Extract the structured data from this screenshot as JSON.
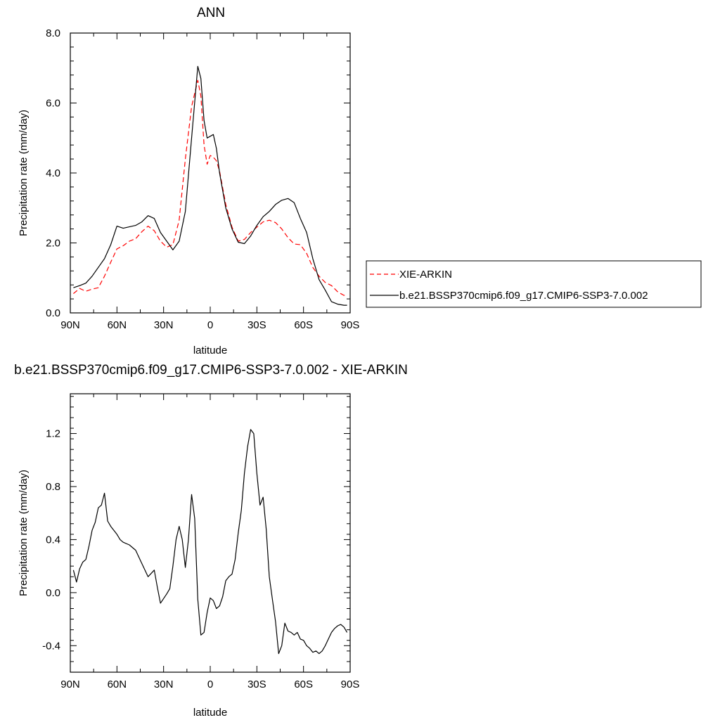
{
  "chart_data": [
    {
      "type": "line",
      "title": "ANN",
      "xlabel": "latitude",
      "ylabel": "Precipitation rate (mm/day)",
      "xlim": [
        90,
        -90
      ],
      "ylim": [
        0,
        8
      ],
      "x_ticks": [
        90,
        60,
        30,
        0,
        -30,
        -60,
        -90
      ],
      "x_tick_labels": [
        "90N",
        "60N",
        "30N",
        "0",
        "30S",
        "60S",
        "90S"
      ],
      "y_ticks": [
        0,
        2,
        4,
        6,
        8
      ],
      "y_tick_labels": [
        "0.0",
        "2.0",
        "4.0",
        "6.0",
        "8.0"
      ],
      "legend_position": "right",
      "series": [
        {
          "name": "XIE-ARKIN",
          "color": "#ff0000",
          "dash": "dashed",
          "x": [
            88,
            84,
            80,
            76,
            72,
            68,
            64,
            60,
            56,
            52,
            48,
            44,
            40,
            36,
            32,
            28,
            24,
            20,
            16,
            12,
            8,
            6,
            4,
            2,
            0,
            -2,
            -4,
            -6,
            -10,
            -14,
            -18,
            -22,
            -26,
            -30,
            -34,
            -38,
            -42,
            -46,
            -50,
            -54,
            -58,
            -62,
            -66,
            -70,
            -74,
            -78,
            -82,
            -86,
            -88
          ],
          "values": [
            0.55,
            0.7,
            0.62,
            0.68,
            0.72,
            1.05,
            1.45,
            1.83,
            1.92,
            2.05,
            2.12,
            2.32,
            2.48,
            2.35,
            2.05,
            1.88,
            1.95,
            2.65,
            4.4,
            5.9,
            6.65,
            6.2,
            4.8,
            4.25,
            4.5,
            4.45,
            4.35,
            4.05,
            3.1,
            2.45,
            2.05,
            2.1,
            2.3,
            2.45,
            2.6,
            2.65,
            2.58,
            2.4,
            2.15,
            1.97,
            1.95,
            1.7,
            1.3,
            1.05,
            0.87,
            0.78,
            0.6,
            0.5,
            0.52
          ]
        },
        {
          "name": "b.e21.BSSP370cmip6.f09_g17.CMIP6-SSP3-7.0.002",
          "color": "#000000",
          "dash": "solid",
          "x": [
            88,
            84,
            80,
            76,
            72,
            68,
            64,
            60,
            56,
            52,
            48,
            44,
            40,
            36,
            32,
            28,
            24,
            20,
            16,
            12,
            8,
            6,
            4,
            2,
            0,
            -2,
            -4,
            -6,
            -10,
            -14,
            -18,
            -22,
            -26,
            -30,
            -34,
            -38,
            -42,
            -46,
            -50,
            -54,
            -58,
            -62,
            -66,
            -70,
            -74,
            -78,
            -82,
            -86,
            -88
          ],
          "values": [
            0.72,
            0.78,
            0.85,
            1.05,
            1.3,
            1.55,
            1.95,
            2.48,
            2.42,
            2.46,
            2.5,
            2.6,
            2.78,
            2.7,
            2.3,
            2.05,
            1.8,
            2.05,
            2.9,
            5.0,
            7.05,
            6.7,
            5.5,
            5.0,
            5.05,
            5.1,
            4.7,
            4.0,
            3.0,
            2.4,
            2.02,
            1.98,
            2.2,
            2.5,
            2.75,
            2.9,
            3.1,
            3.22,
            3.27,
            3.15,
            2.7,
            2.3,
            1.55,
            0.95,
            0.65,
            0.32,
            0.25,
            0.22,
            0.22
          ]
        }
      ]
    },
    {
      "type": "line",
      "title": "b.e21.BSSP370cmip6.f09_g17.CMIP6-SSP3-7.0.002 - XIE-ARKIN",
      "xlabel": "latitude",
      "ylabel": "Precipitation rate (mm/day)",
      "xlim": [
        90,
        -90
      ],
      "ylim": [
        -0.6,
        1.5
      ],
      "x_ticks": [
        90,
        60,
        30,
        0,
        -30,
        -60,
        -90
      ],
      "x_tick_labels": [
        "90N",
        "60N",
        "30N",
        "0",
        "30S",
        "60S",
        "90S"
      ],
      "y_ticks": [
        -0.4,
        0,
        0.4,
        0.8,
        1.2
      ],
      "y_tick_labels": [
        "-0.4",
        "0.0",
        "0.4",
        "0.8",
        "1.2"
      ],
      "series": [
        {
          "name": "",
          "color": "#000000",
          "dash": "solid",
          "x": [
            88,
            86,
            84,
            82,
            80,
            78,
            76,
            74,
            72,
            70,
            68,
            66,
            64,
            62,
            60,
            58,
            56,
            52,
            48,
            44,
            40,
            36,
            34,
            32,
            28,
            26,
            24,
            22,
            20,
            18,
            16,
            14,
            12,
            10,
            8,
            6,
            4,
            2,
            0,
            -2,
            -4,
            -6,
            -8,
            -10,
            -12,
            -14,
            -16,
            -18,
            -20,
            -22,
            -24,
            -26,
            -28,
            -30,
            -32,
            -34,
            -36,
            -38,
            -40,
            -42,
            -44,
            -46,
            -48,
            -50,
            -52,
            -54,
            -56,
            -58,
            -60,
            -62,
            -64,
            -66,
            -68,
            -70,
            -72,
            -74,
            -76,
            -78,
            -80,
            -82,
            -84,
            -86,
            -88
          ],
          "values": [
            0.17,
            0.08,
            0.18,
            0.23,
            0.25,
            0.35,
            0.47,
            0.53,
            0.64,
            0.66,
            0.75,
            0.54,
            0.5,
            0.47,
            0.44,
            0.4,
            0.38,
            0.36,
            0.32,
            0.22,
            0.12,
            0.17,
            0.04,
            -0.08,
            -0.01,
            0.03,
            0.2,
            0.4,
            0.5,
            0.4,
            0.19,
            0.4,
            0.74,
            0.56,
            -0.05,
            -0.32,
            -0.3,
            -0.15,
            -0.04,
            -0.06,
            -0.12,
            -0.1,
            -0.03,
            0.09,
            0.12,
            0.14,
            0.25,
            0.45,
            0.62,
            0.9,
            1.1,
            1.23,
            1.2,
            0.9,
            0.66,
            0.72,
            0.48,
            0.12,
            -0.05,
            -0.22,
            -0.46,
            -0.4,
            -0.23,
            -0.29,
            -0.3,
            -0.32,
            -0.3,
            -0.35,
            -0.36,
            -0.4,
            -0.42,
            -0.45,
            -0.44,
            -0.46,
            -0.44,
            -0.4,
            -0.35,
            -0.3,
            -0.27,
            -0.25,
            -0.24,
            -0.26,
            -0.3
          ]
        }
      ]
    }
  ]
}
